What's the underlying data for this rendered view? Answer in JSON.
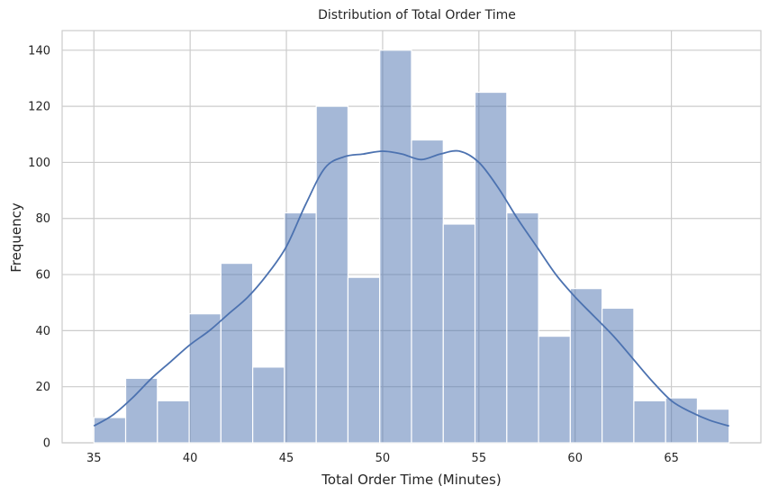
{
  "chart_data": {
    "type": "bar",
    "subtype": "histogram-with-kde",
    "title": "Distribution of Total Order Time",
    "xlabel": "Total Order Time (Minutes)",
    "ylabel": "Frequency",
    "xlim": [
      33.35,
      69.65
    ],
    "ylim": [
      0,
      147
    ],
    "xticks": [
      35,
      40,
      45,
      50,
      55,
      60,
      65
    ],
    "yticks": [
      0,
      20,
      40,
      60,
      80,
      100,
      120,
      140
    ],
    "grid": true,
    "bin_edges": [
      35.0,
      36.65,
      38.3,
      39.95,
      41.6,
      43.25,
      44.9,
      46.55,
      48.2,
      49.85,
      51.5,
      53.15,
      54.8,
      56.45,
      58.1,
      59.75,
      61.4,
      63.05,
      64.7,
      66.35,
      68.0
    ],
    "counts": [
      9,
      23,
      15,
      46,
      64,
      27,
      82,
      120,
      59,
      140,
      108,
      78,
      125,
      82,
      38,
      55,
      48,
      15,
      16,
      12
    ],
    "kde": {
      "x": [
        35,
        36,
        37,
        38,
        39,
        40,
        41,
        42,
        43,
        44,
        45,
        46,
        47,
        48,
        49,
        50,
        51,
        52,
        53,
        54,
        55,
        56,
        57,
        58,
        59,
        60,
        61,
        62,
        63,
        64,
        65,
        66,
        67,
        68
      ],
      "y": [
        6,
        10,
        16,
        23,
        29,
        35,
        40,
        46,
        52,
        60,
        70,
        85,
        98,
        102,
        103,
        104,
        103,
        101,
        103,
        104,
        100,
        91,
        80,
        70,
        60,
        52,
        45,
        38,
        30,
        22,
        15,
        11,
        8,
        6
      ]
    },
    "colors": {
      "bar": "#4c72b0",
      "kde": "#4c72b0",
      "grid": "#cccccc"
    }
  }
}
